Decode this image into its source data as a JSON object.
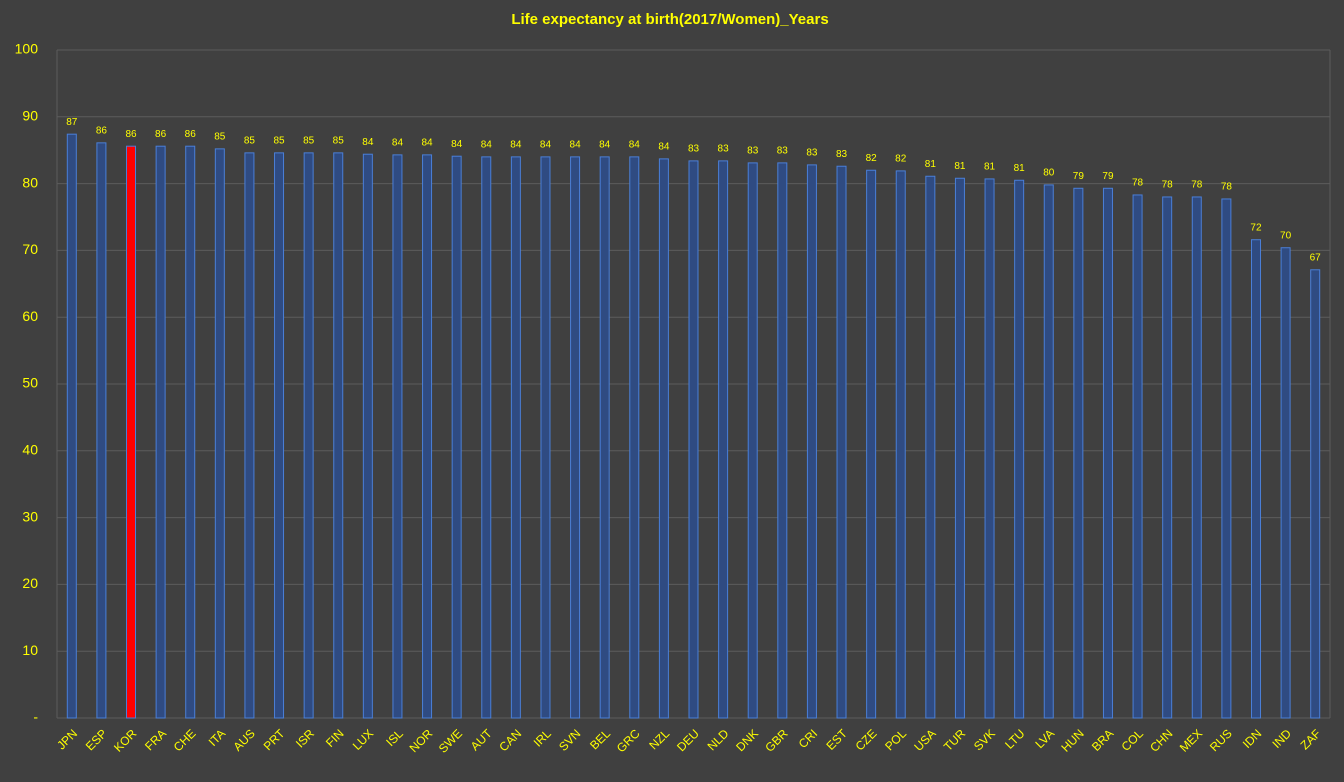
{
  "chart_data": {
    "type": "bar",
    "title": "Life expectancy at birth(2017/Women)_Years",
    "categories": [
      "JPN",
      "ESP",
      "KOR",
      "FRA",
      "CHE",
      "ITA",
      "AUS",
      "PRT",
      "ISR",
      "FIN",
      "LUX",
      "ISL",
      "NOR",
      "SWE",
      "AUT",
      "CAN",
      "IRL",
      "SVN",
      "BEL",
      "GRC",
      "NZL",
      "DEU",
      "NLD",
      "DNK",
      "GBR",
      "CRI",
      "EST",
      "CZE",
      "POL",
      "USA",
      "TUR",
      "SVK",
      "LTU",
      "LVA",
      "HUN",
      "BRA",
      "COL",
      "CHN",
      "MEX",
      "RUS",
      "IDN",
      "IND",
      "ZAF"
    ],
    "values": [
      87.4,
      86.1,
      85.6,
      85.6,
      85.6,
      85.2,
      84.6,
      84.6,
      84.6,
      84.6,
      84.4,
      84.3,
      84.3,
      84.1,
      84.0,
      84.0,
      84.0,
      84.0,
      84.0,
      84.0,
      83.7,
      83.4,
      83.4,
      83.1,
      83.1,
      82.8,
      82.6,
      82.0,
      81.9,
      81.1,
      80.8,
      80.7,
      80.5,
      79.8,
      79.3,
      79.3,
      78.3,
      78.0,
      78.0,
      77.7,
      71.6,
      70.4,
      67.1
    ],
    "value_labels": [
      "87",
      "86",
      "86",
      "86",
      "86",
      "85",
      "85",
      "85",
      "85",
      "85",
      "84",
      "84",
      "84",
      "84",
      "84",
      "84",
      "84",
      "84",
      "84",
      "84",
      "84",
      "83",
      "83",
      "83",
      "83",
      "83",
      "83",
      "82",
      "82",
      "81",
      "81",
      "81",
      "81",
      "80",
      "79",
      "79",
      "78",
      "78",
      "78",
      "78",
      "72",
      "70",
      "67"
    ],
    "colors": [
      "#2f4b82",
      "#2f4b82",
      "#ff0000",
      "#2f4b82",
      "#2f4b82",
      "#2f4b82",
      "#2f4b82",
      "#2f4b82",
      "#2f4b82",
      "#2f4b82",
      "#2f4b82",
      "#2f4b82",
      "#2f4b82",
      "#2f4b82",
      "#2f4b82",
      "#2f4b82",
      "#2f4b82",
      "#2f4b82",
      "#2f4b82",
      "#2f4b82",
      "#2f4b82",
      "#2f4b82",
      "#2f4b82",
      "#2f4b82",
      "#2f4b82",
      "#2f4b82",
      "#2f4b82",
      "#2f4b82",
      "#2f4b82",
      "#2f4b82",
      "#2f4b82",
      "#2f4b82",
      "#2f4b82",
      "#2f4b82",
      "#2f4b82",
      "#2f4b82",
      "#2f4b82",
      "#2f4b82",
      "#2f4b82",
      "#2f4b82",
      "#2f4b82",
      "#2f4b82",
      "#2f4b82"
    ],
    "edge_color": "#4a7fd8",
    "ylim": [
      0,
      100
    ],
    "yticks": [
      {
        "value": 0,
        "label": "-"
      },
      10,
      20,
      30,
      40,
      50,
      60,
      70,
      80,
      90,
      100
    ],
    "grid": true
  }
}
